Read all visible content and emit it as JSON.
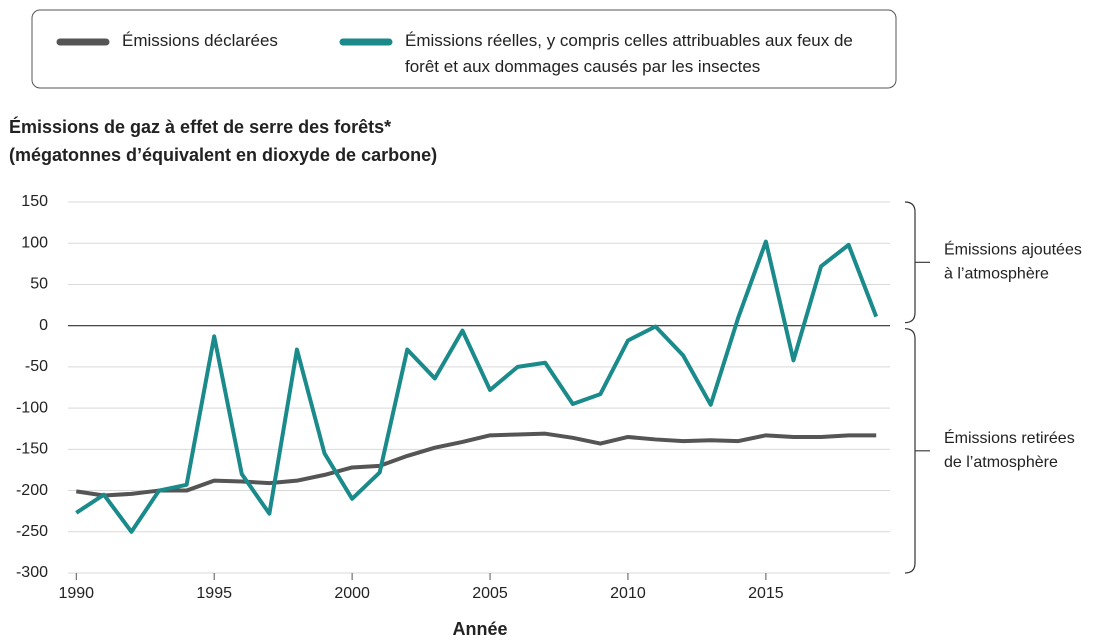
{
  "chart_data": {
    "type": "line",
    "title": "Émissions de gaz à effet de serre des forêts*",
    "subtitle": "(mégatonnes d’équivalent en dioxyde de carbone)",
    "xlabel": "Année",
    "x": [
      1990,
      1991,
      1992,
      1993,
      1994,
      1995,
      1996,
      1997,
      1998,
      1999,
      2000,
      2001,
      2002,
      2003,
      2004,
      2005,
      2006,
      2007,
      2008,
      2009,
      2010,
      2011,
      2012,
      2013,
      2014,
      2015,
      2016,
      2017,
      2018,
      2019
    ],
    "series": [
      {
        "name": "Émissions déclarées",
        "color": "#555555",
        "values": [
          -201,
          -206,
          -204,
          -200,
          -200,
          -188,
          -189,
          -191,
          -188,
          -181,
          -172,
          -170,
          -158,
          -148,
          -141,
          -133,
          -132,
          -131,
          -136,
          -143,
          -135,
          -138,
          -140,
          -139,
          -140,
          -133,
          -135,
          -135,
          -133,
          -133
        ]
      },
      {
        "name": "Émissions réelles, y compris celles attribuables aux feux de forêt et aux dommages causés par les insectes",
        "color": "#1a8a8a",
        "values": [
          -227,
          -205,
          -250,
          -200,
          -193,
          -13,
          -180,
          -228,
          -29,
          -155,
          -210,
          -178,
          -29,
          -64,
          -6,
          -78,
          -50,
          -45,
          -95,
          -83,
          -18,
          -1,
          -36,
          -96,
          10,
          102,
          -42,
          72,
          98,
          11
        ]
      }
    ],
    "xlim": [
      1989.7,
      2019.5
    ],
    "xticks": [
      1990,
      1995,
      2000,
      2005,
      2010,
      2015
    ],
    "ylim": [
      -300,
      150
    ],
    "yticks": [
      -300,
      -250,
      -200,
      -150,
      -100,
      -50,
      0,
      50,
      100,
      150
    ],
    "grid": true,
    "annotations": [
      [
        "Émissions ajoutées",
        "à l’atmosphère"
      ],
      [
        "Émissions retirées",
        "de l’atmosphère"
      ]
    ]
  }
}
